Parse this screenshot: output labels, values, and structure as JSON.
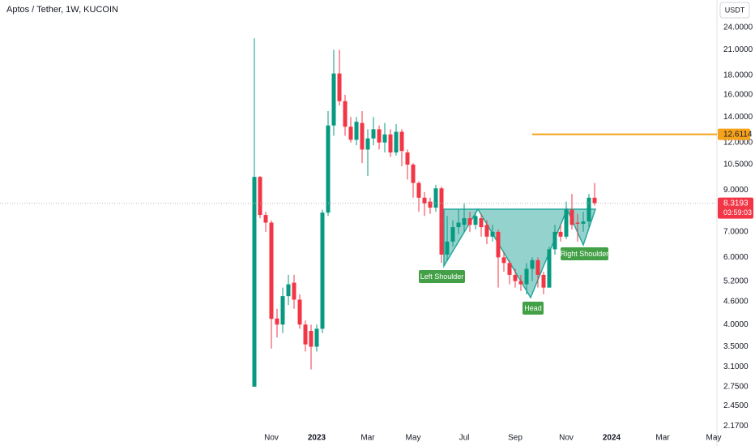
{
  "chart_data": {
    "type": "candlestick",
    "title": "Aptos / Tether, 1W, KUCOIN",
    "currency": "USDT",
    "categories": [
      null,
      null,
      null,
      "Nov",
      null,
      null,
      null,
      null,
      null,
      null,
      null,
      "2023",
      null,
      null,
      null,
      null,
      null,
      null,
      null,
      null,
      "Mar",
      null,
      null,
      null,
      null,
      null,
      null,
      null,
      "May",
      null,
      null,
      null,
      null,
      null,
      null,
      null,
      null,
      "Jul",
      null,
      null,
      null,
      null,
      null,
      null,
      null,
      null,
      "Sep",
      null,
      null,
      null,
      null,
      null,
      null,
      null,
      null,
      "Nov",
      null,
      null,
      null,
      null,
      null,
      null,
      null,
      "2024",
      null,
      null,
      null,
      null,
      null,
      null,
      null,
      null,
      "Mar",
      null,
      null,
      null,
      null,
      null,
      null,
      null,
      null,
      "May"
    ],
    "open": [
      2.75,
      9.75,
      7.75,
      7.4,
      4.15,
      4.0,
      4.75,
      5.15,
      4.65,
      4.0,
      3.85,
      3.5,
      3.9,
      7.86,
      13.3,
      18.2,
      15.4,
      13.2,
      12.2,
      13.5,
      11.5,
      12.3,
      13.0,
      12.0,
      12.6,
      11.3,
      12.8,
      11.3,
      10.5,
      9.4,
      8.6,
      8.4,
      8.1,
      9.1,
      6.1,
      6.6,
      7.2,
      7.3,
      7.6,
      7.3,
      7.6,
      7.3,
      6.8,
      7.0,
      6.0,
      5.8,
      5.4,
      5.2,
      5.1,
      5.6,
      5.9,
      5.4,
      5.0,
      6.3,
      7.0,
      6.8,
      8.0,
      7.4,
      7.35,
      7.45,
      8.6,
      null,
      null,
      null,
      null,
      null,
      null,
      null,
      null,
      null,
      null,
      null,
      null,
      null,
      null,
      null,
      null,
      null,
      null,
      null,
      null,
      null
    ],
    "high": [
      22.5,
      9.8,
      7.9,
      7.5,
      4.4,
      5.0,
      5.4,
      5.4,
      4.8,
      4.1,
      4.0,
      4.0,
      8.0,
      14.5,
      21,
      21,
      16,
      14,
      14,
      14.5,
      13,
      14,
      13.3,
      13.5,
      13,
      13.4,
      13,
      11.5,
      10.6,
      9.5,
      8.9,
      8.6,
      9.3,
      9.2,
      7.7,
      7.5,
      8.0,
      8.3,
      7.9,
      7.9,
      7.8,
      7.5,
      7.3,
      7.1,
      6.2,
      5.9,
      5.6,
      5.4,
      5.8,
      6.0,
      6.0,
      5.5,
      6.4,
      7.3,
      7.3,
      8.4,
      8.8,
      7.8,
      7.9,
      8.8,
      9.4,
      null,
      null,
      null,
      null,
      null,
      null,
      null,
      null,
      null,
      null,
      null,
      null,
      null,
      null,
      null,
      null,
      null,
      null,
      null,
      null,
      null
    ],
    "low": [
      2.75,
      7.6,
      7.0,
      3.46,
      3.7,
      3.8,
      4.5,
      4.4,
      3.9,
      3.4,
      3.05,
      3.4,
      3.8,
      7.7,
      12.5,
      15,
      12.5,
      12,
      11.8,
      10.6,
      9.8,
      11.8,
      11.5,
      11.3,
      11,
      11.1,
      10.4,
      9.6,
      8.6,
      7.9,
      7.7,
      7.8,
      7.9,
      5.8,
      5.9,
      6.4,
      6.9,
      7.0,
      7.0,
      7.1,
      6.8,
      6.5,
      6.6,
      5.0,
      5.5,
      5.1,
      5.0,
      4.9,
      4.8,
      5.2,
      5.0,
      4.8,
      5.0,
      6.1,
      6.6,
      6.7,
      7.1,
      6.6,
      7.0,
      7.2,
      8.2,
      null,
      null,
      null,
      null,
      null,
      null,
      null,
      null,
      null,
      null,
      null,
      null,
      null,
      null,
      null,
      null,
      null,
      null,
      null,
      null,
      null
    ],
    "close": [
      9.75,
      7.75,
      7.4,
      4.14,
      4.0,
      4.75,
      5.1,
      4.65,
      4.0,
      3.55,
      3.5,
      3.9,
      7.86,
      13.3,
      18.2,
      15.4,
      13.2,
      12.2,
      13.6,
      11.5,
      12.3,
      13.0,
      12.0,
      12.6,
      11.3,
      12.8,
      11.4,
      10.5,
      9.4,
      8.6,
      8.3,
      8.1,
      9.1,
      6.1,
      6.6,
      7.2,
      7.4,
      7.6,
      7.3,
      7.7,
      7.2,
      6.8,
      7.0,
      6.0,
      5.8,
      5.4,
      5.2,
      5.1,
      5.6,
      5.9,
      5.4,
      5.0,
      6.3,
      7.0,
      6.8,
      8.0,
      7.3,
      7.35,
      7.45,
      8.6,
      8.3193,
      null,
      null,
      null,
      null,
      null,
      null,
      null,
      null,
      null,
      null,
      null,
      null,
      null,
      null,
      null,
      null,
      null,
      null,
      null,
      null,
      null
    ],
    "up_color": "#089981",
    "down_color": "#f23645",
    "log_scale": true,
    "grid": false,
    "ylim": [
      2.12,
      25.46
    ],
    "yticks": [
      {
        "value": 24,
        "label": "24.0000"
      },
      {
        "value": 21,
        "label": "21.0000"
      },
      {
        "value": 18,
        "label": "18.0000"
      },
      {
        "value": 16,
        "label": "16.0000"
      },
      {
        "value": 14,
        "label": "14.0000"
      },
      {
        "value": 12,
        "label": "12.0000"
      },
      {
        "value": 10.5,
        "label": "10.5000"
      },
      {
        "value": 9,
        "label": "9.0000"
      },
      {
        "value": 7,
        "label": "7.0000"
      },
      {
        "value": 6,
        "label": "6.0000"
      },
      {
        "value": 5.2,
        "label": "5.2000"
      },
      {
        "value": 4.6,
        "label": "4.6000"
      },
      {
        "value": 4,
        "label": "4.0000"
      },
      {
        "value": 3.5,
        "label": "3.5000"
      },
      {
        "value": 3.1,
        "label": "3.1000"
      },
      {
        "value": 2.75,
        "label": "2.7500"
      },
      {
        "value": 2.45,
        "label": "2.4500"
      },
      {
        "value": 2.17,
        "label": "2.1700"
      }
    ],
    "last_price": 8.3193,
    "countdown": "03:59:03",
    "level": 12.6114,
    "level_color": "#f7a21b",
    "annotations": [
      "Left Shoulder",
      "Head",
      "Right Shoulder"
    ]
  }
}
